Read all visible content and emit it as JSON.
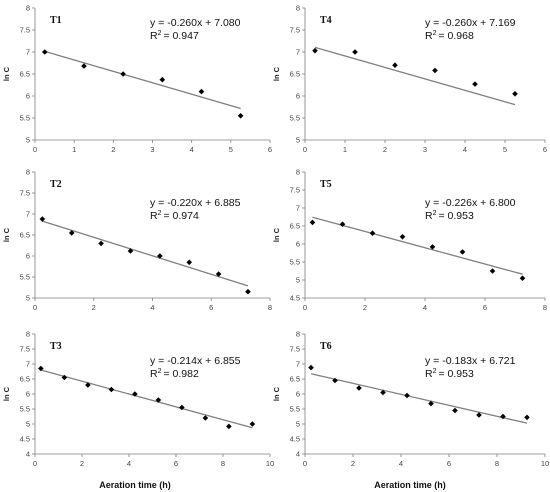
{
  "chart_data": [
    {
      "type": "scatter",
      "title": "T1",
      "xlabel": "",
      "ylabel": "ln C",
      "xlim": [
        0,
        6
      ],
      "ylim": [
        5,
        8
      ],
      "xticks": [
        0,
        1,
        2,
        3,
        4,
        5,
        6
      ],
      "yticks": [
        5,
        5.5,
        6,
        6.5,
        7,
        7.5,
        8
      ],
      "x": [
        0.25,
        1.25,
        2.25,
        3.25,
        4.25,
        5.25
      ],
      "y": [
        7.0,
        6.68,
        6.5,
        6.37,
        6.1,
        5.55
      ],
      "trend": {
        "slope": -0.26,
        "intercept": 7.08
      },
      "equation": "y = -0.260x + 7.080",
      "r2_label": "R",
      "r2_value": "= 0.947"
    },
    {
      "type": "scatter",
      "title": "T4",
      "xlabel": "",
      "ylabel": "ln C",
      "xlim": [
        0,
        6
      ],
      "ylim": [
        5,
        8
      ],
      "xticks": [
        0,
        1,
        2,
        3,
        4,
        5,
        6
      ],
      "yticks": [
        5,
        5.5,
        6,
        6.5,
        7,
        7.5,
        8
      ],
      "x": [
        0.25,
        1.25,
        2.25,
        3.25,
        4.25,
        5.25
      ],
      "y": [
        7.03,
        7.0,
        6.7,
        6.58,
        6.27,
        6.05
      ],
      "trend": {
        "slope": -0.26,
        "intercept": 7.169
      },
      "equation": "y = -0.260x + 7.169",
      "r2_label": "R",
      "r2_value": "= 0.968"
    },
    {
      "type": "scatter",
      "title": "T2",
      "xlabel": "",
      "ylabel": "ln C",
      "xlim": [
        0,
        8
      ],
      "ylim": [
        5,
        8
      ],
      "xticks": [
        0,
        2,
        4,
        6,
        8
      ],
      "yticks": [
        5,
        5.5,
        6,
        6.5,
        7,
        7.5,
        8
      ],
      "x": [
        0.25,
        1.25,
        2.25,
        3.25,
        4.25,
        5.25,
        6.25,
        7.25
      ],
      "y": [
        6.88,
        6.55,
        6.3,
        6.12,
        6.0,
        5.85,
        5.57,
        5.15
      ],
      "trend": {
        "slope": -0.22,
        "intercept": 6.885
      },
      "equation": "y = -0.220x + 6.885",
      "r2_label": "R",
      "r2_value": "= 0.974"
    },
    {
      "type": "scatter",
      "title": "T5",
      "xlabel": "",
      "ylabel": "ln C",
      "xlim": [
        0,
        8
      ],
      "ylim": [
        4.5,
        8
      ],
      "xticks": [
        0,
        2,
        4,
        6,
        8
      ],
      "yticks": [
        4.5,
        5,
        5.5,
        6,
        6.5,
        7,
        7.5,
        8
      ],
      "x": [
        0.25,
        1.25,
        2.25,
        3.25,
        4.25,
        5.25,
        6.25,
        7.25
      ],
      "y": [
        6.6,
        6.55,
        6.3,
        6.2,
        5.92,
        5.78,
        5.25,
        5.05
      ],
      "trend": {
        "slope": -0.226,
        "intercept": 6.8
      },
      "equation": "y = -0.226x + 6.800",
      "r2_label": "R",
      "r2_value": "= 0.953"
    },
    {
      "type": "scatter",
      "title": "T3",
      "xlabel": "",
      "ylabel": "ln C",
      "xlim": [
        0,
        10
      ],
      "ylim": [
        4,
        8
      ],
      "xticks": [
        0,
        2,
        4,
        6,
        8,
        10
      ],
      "yticks": [
        4,
        4.5,
        5,
        5.5,
        6,
        6.5,
        7,
        7.5,
        8
      ],
      "x": [
        0.25,
        1.25,
        2.25,
        3.25,
        4.25,
        5.25,
        6.25,
        7.25,
        8.25,
        9.25
      ],
      "y": [
        6.85,
        6.55,
        6.3,
        6.15,
        6.0,
        5.8,
        5.55,
        5.2,
        4.92,
        5.0
      ],
      "trend": {
        "slope": -0.214,
        "intercept": 6.855
      },
      "equation": "y = -0.214x + 6.855",
      "r2_label": "R",
      "r2_value": "= 0.982"
    },
    {
      "type": "scatter",
      "title": "T6",
      "xlabel": "",
      "ylabel": "ln C",
      "xlim": [
        0,
        10
      ],
      "ylim": [
        4,
        8
      ],
      "xticks": [
        0,
        2,
        4,
        6,
        8,
        10
      ],
      "yticks": [
        4,
        4.5,
        5,
        5.5,
        6,
        6.5,
        7,
        7.5,
        8
      ],
      "x": [
        0.25,
        1.25,
        2.25,
        3.25,
        4.25,
        5.25,
        6.25,
        7.25,
        8.25,
        9.25
      ],
      "y": [
        6.88,
        6.45,
        6.2,
        6.05,
        5.95,
        5.68,
        5.45,
        5.3,
        5.25,
        5.22
      ],
      "trend": {
        "slope": -0.183,
        "intercept": 6.721
      },
      "equation": "y = -0.183x + 6.721",
      "r2_label": "R",
      "r2_value": "= 0.953"
    }
  ],
  "x_axis_title": "Aeration time (h)",
  "colors": {
    "marker": "#000000",
    "trendline": "#808080",
    "axis": "#808080"
  }
}
